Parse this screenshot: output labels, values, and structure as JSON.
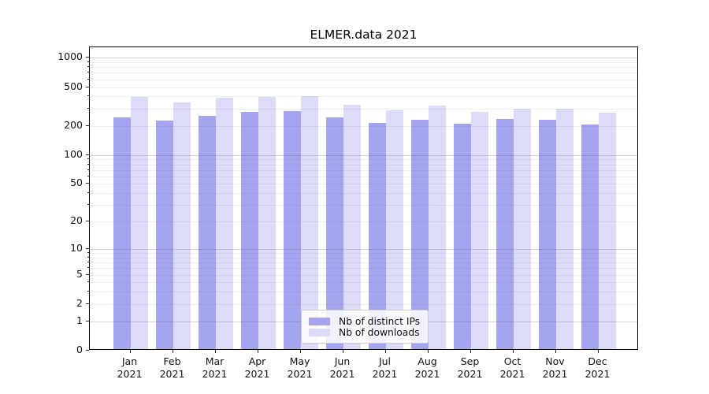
{
  "title": "ELMER.data 2021",
  "chart_data": {
    "type": "bar",
    "title": "ELMER.data 2021",
    "categories": [
      [
        "Jan",
        "2021"
      ],
      [
        "Feb",
        "2021"
      ],
      [
        "Mar",
        "2021"
      ],
      [
        "Apr",
        "2021"
      ],
      [
        "May",
        "2021"
      ],
      [
        "Jun",
        "2021"
      ],
      [
        "Jul",
        "2021"
      ],
      [
        "Aug",
        "2021"
      ],
      [
        "Sep",
        "2021"
      ],
      [
        "Oct",
        "2021"
      ],
      [
        "Nov",
        "2021"
      ],
      [
        "Dec",
        "2021"
      ]
    ],
    "series": [
      {
        "name": "Nb of distinct IPs",
        "color": "#a5a5ef",
        "values": [
          236,
          218,
          246,
          270,
          272,
          237,
          208,
          222,
          204,
          228,
          222,
          200
        ]
      },
      {
        "name": "Nb of downloads",
        "color": "#dcdcf8",
        "values": [
          380,
          336,
          378,
          385,
          388,
          316,
          280,
          312,
          267,
          289,
          291,
          262
        ]
      }
    ],
    "xlabel": "",
    "ylabel": "",
    "y_scale": "log1p",
    "y_ticks": [
      0,
      1,
      2,
      5,
      10,
      20,
      50,
      100,
      200,
      500,
      1000
    ],
    "y_major_gridlines": [
      1,
      10,
      100,
      1000
    ],
    "y_minor_gridlines": [
      2,
      3,
      4,
      5,
      6,
      7,
      8,
      9,
      20,
      30,
      40,
      50,
      60,
      70,
      80,
      90,
      200,
      300,
      400,
      500,
      600,
      700,
      800,
      900
    ],
    "ylim": [
      0,
      1280
    ],
    "grid": true,
    "legend_position": "lower center"
  }
}
